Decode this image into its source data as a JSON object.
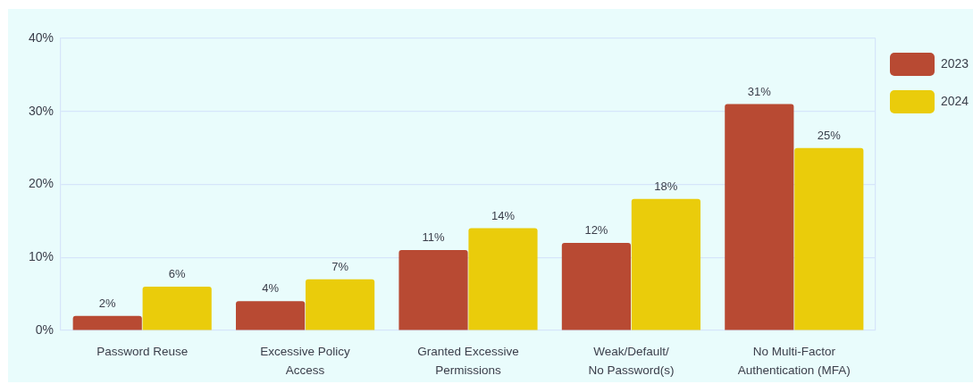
{
  "chart_data": {
    "type": "bar",
    "categories": [
      "Password Reuse",
      "Excessive Policy\nAccess",
      "Granted Excessive\nPermissions",
      "Weak/Default/\nNo Password(s)",
      "No Multi-Factor\nAuthentication (MFA)"
    ],
    "series": [
      {
        "name": "2023",
        "color": "#b84a33",
        "values": [
          2,
          4,
          11,
          12,
          31
        ],
        "value_labels": [
          "2%",
          "4%",
          "11%",
          "12%",
          "31%"
        ]
      },
      {
        "name": "2024",
        "color": "#eacc0b",
        "values": [
          6,
          7,
          14,
          18,
          25
        ],
        "value_labels": [
          "6%",
          "7%",
          "14%",
          "18%",
          "25%"
        ]
      }
    ],
    "ylim": [
      0,
      40
    ],
    "yticks": [
      {
        "value": 0,
        "label": "0%"
      },
      {
        "value": 10,
        "label": "10%"
      },
      {
        "value": 20,
        "label": "20%"
      },
      {
        "value": 30,
        "label": "30%"
      },
      {
        "value": 40,
        "label": "40%"
      }
    ],
    "grid": "y",
    "legend": "right"
  }
}
